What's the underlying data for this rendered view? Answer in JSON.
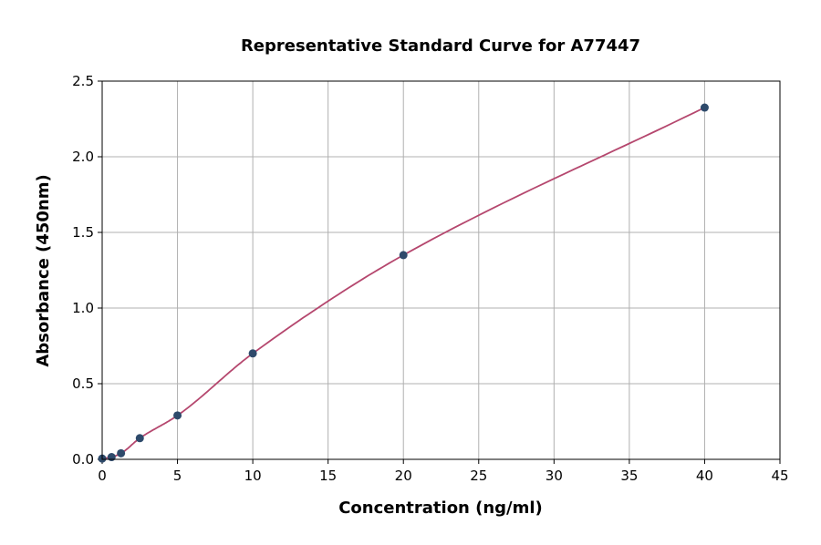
{
  "chart_data": {
    "type": "line",
    "title": "Representative Standard Curve for A77447",
    "xlabel": "Concentration (ng/ml)",
    "ylabel": "Absorbance (450nm)",
    "xlim": [
      0,
      45
    ],
    "ylim": [
      0,
      2.5
    ],
    "xticks": [
      0,
      5,
      10,
      15,
      20,
      25,
      30,
      35,
      40,
      45
    ],
    "yticks": [
      "0.0",
      "0.5",
      "1.0",
      "1.5",
      "2.0",
      "2.5"
    ],
    "grid": true,
    "points": {
      "x": [
        0,
        0.625,
        1.25,
        2.5,
        5,
        10,
        20,
        40
      ],
      "y": [
        0.005,
        0.015,
        0.04,
        0.14,
        0.29,
        0.7,
        1.35,
        2.325
      ]
    },
    "colors": {
      "points": "#2e4a6b",
      "curve": "#b5476e",
      "grid": "#b0b0b0"
    }
  }
}
